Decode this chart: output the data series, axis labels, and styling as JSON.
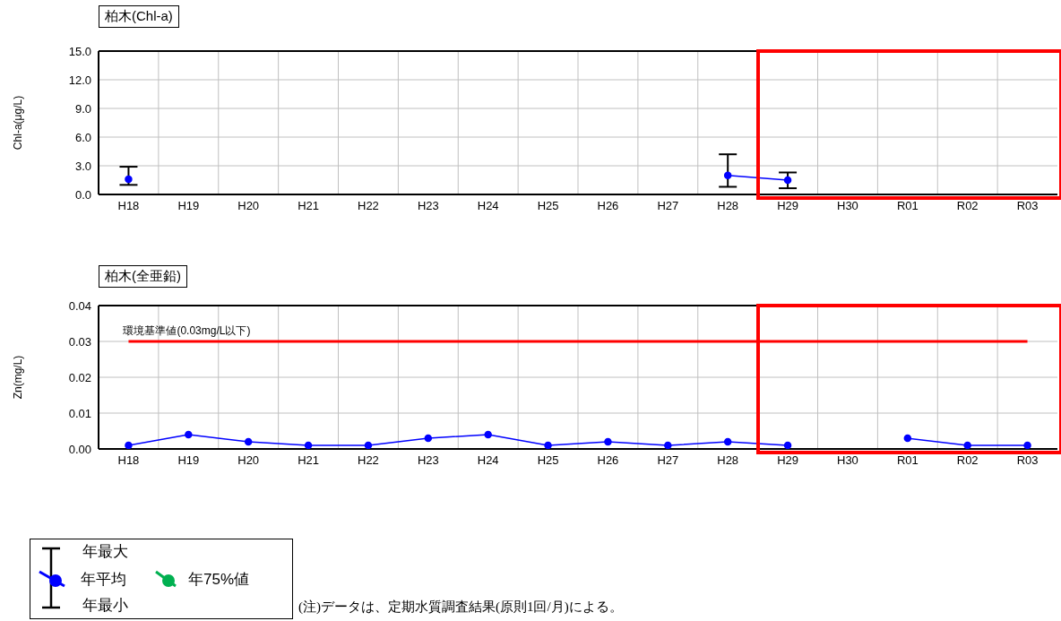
{
  "chart_data": [
    {
      "type": "line",
      "title": "柏木(Chl-a)",
      "ylabel": "Chl-a(μg/L)",
      "categories": [
        "H18",
        "H19",
        "H20",
        "H21",
        "H22",
        "H23",
        "H24",
        "H25",
        "H26",
        "H27",
        "H28",
        "H29",
        "H30",
        "R01",
        "R02",
        "R03"
      ],
      "series": [
        {
          "name": "年平均",
          "color": "#0000ff",
          "values": [
            1.6,
            null,
            null,
            null,
            null,
            null,
            null,
            null,
            null,
            null,
            2.0,
            1.5,
            null,
            null,
            null,
            null
          ],
          "errors": [
            [
              1.0,
              2.9
            ],
            null,
            null,
            null,
            null,
            null,
            null,
            null,
            null,
            null,
            [
              0.8,
              4.2
            ],
            [
              0.65,
              2.3
            ],
            null,
            null,
            null,
            null
          ]
        },
        {
          "name": "年75%値",
          "color": "#00b050",
          "values": [
            null,
            null,
            null,
            null,
            null,
            null,
            null,
            null,
            null,
            null,
            null,
            null,
            null,
            null,
            null,
            null
          ]
        }
      ],
      "ylim": [
        0,
        15
      ],
      "yticks": [
        {
          "value": 0,
          "label": "0.0"
        },
        {
          "value": 3,
          "label": "3.0"
        },
        {
          "value": 6,
          "label": "6.0"
        },
        {
          "value": 9,
          "label": "9.0"
        },
        {
          "value": 12,
          "label": "12.0"
        },
        {
          "value": 15,
          "label": "15.0"
        }
      ],
      "annotations": [
        "年最大",
        "年最小"
      ],
      "grid": true,
      "legend": "bottom left",
      "marker": "circle",
      "line_style": "solid"
    },
    {
      "type": "line",
      "title": "柏木(全亜鉛)",
      "ylabel": "Zn(mg/L)",
      "categories": [
        "H18",
        "H19",
        "H20",
        "H21",
        "H22",
        "H23",
        "H24",
        "H25",
        "H26",
        "H27",
        "H28",
        "H29",
        "H30",
        "R01",
        "R02",
        "R03"
      ],
      "series": [
        {
          "color": "#0000ff",
          "values": [
            0.001,
            0.004,
            0.002,
            0.001,
            0.001,
            0.003,
            0.004,
            0.001,
            0.002,
            0.001,
            0.002,
            0.001,
            null,
            0.003,
            0.001,
            0.001
          ]
        }
      ],
      "ylim": [
        0,
        0.04
      ],
      "yticks": [
        {
          "value": 0,
          "label": "0.00"
        },
        {
          "value": 0.01,
          "label": "0.01"
        },
        {
          "value": 0.02,
          "label": "0.02"
        },
        {
          "value": 0.03,
          "label": "0.03"
        },
        {
          "value": 0.04,
          "label": "0.04"
        }
      ],
      "ref_lines": [
        {
          "axis": "y",
          "value": 0.03,
          "label": "環境基準値(0.03mg/L以下)",
          "color": "#ff0000"
        }
      ],
      "annotations": [
        "(注)データは、定期水質調査結果(原則1回/月)による。"
      ],
      "grid": true,
      "marker": "circle",
      "line_style": "solid"
    }
  ]
}
